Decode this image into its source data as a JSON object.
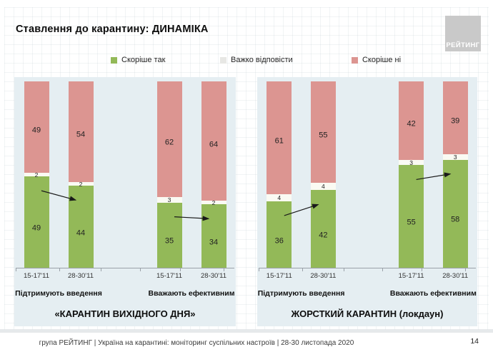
{
  "slide": {
    "title": "Ставлення до карантину: ДИНАМІКА",
    "logo": "РЕЙТИНГ",
    "footer": "група РЕЙТИНГ | Україна на карантині: моніторинг суспільних настроїв | 28-30 листопада 2020",
    "page_number": "14"
  },
  "legend": {
    "items": [
      {
        "label": "Скоріше так",
        "color": "#93b958"
      },
      {
        "label": "Важко відповісти",
        "color": "#e7e7e4"
      },
      {
        "label": "Скоріше ні",
        "color": "#dc9591"
      }
    ]
  },
  "chart_data": {
    "type": "bar",
    "stacked": true,
    "unit": "%",
    "ylim": [
      0,
      100
    ],
    "grid": false,
    "legend_position": "top",
    "series_names": {
      "yes": "Скоріше так",
      "hard": "Важко відповісти",
      "no": "Скоріше ні"
    },
    "colors": {
      "yes": "#93b958",
      "hard": "#fafaf3",
      "no": "#dc9591",
      "panel_bg": "#e5eef2",
      "axis": "#9aa1a8"
    },
    "groups": [
      {
        "title": "«КАРАНТИН ВИХІДНОГО ДНЯ»",
        "subcharts": [
          {
            "label": "Підтримують введення",
            "trend": "down",
            "bars": [
              {
                "category": "15-17'11",
                "yes": 49,
                "hard": 2,
                "no": 49
              },
              {
                "category": "28-30'11",
                "yes": 44,
                "hard": 2,
                "no": 54
              }
            ]
          },
          {
            "label": "Вважають ефективним",
            "trend": "down",
            "bars": [
              {
                "category": "15-17'11",
                "yes": 35,
                "hard": 3,
                "no": 62
              },
              {
                "category": "28-30'11",
                "yes": 34,
                "hard": 2,
                "no": 64
              }
            ]
          }
        ]
      },
      {
        "title": "ЖОРСТКИЙ КАРАНТИН (локдаун)",
        "subcharts": [
          {
            "label": "Підтримують введення",
            "trend": "up",
            "bars": [
              {
                "category": "15-17'11",
                "yes": 36,
                "hard": 4,
                "no": 61
              },
              {
                "category": "28-30'11",
                "yes": 42,
                "hard": 4,
                "no": 55
              }
            ]
          },
          {
            "label": "Вважають ефективним",
            "trend": "up",
            "bars": [
              {
                "category": "15-17'11",
                "yes": 55,
                "hard": 3,
                "no": 42
              },
              {
                "category": "28-30'11",
                "yes": 58,
                "hard": 3,
                "no": 39
              }
            ]
          }
        ]
      }
    ]
  }
}
